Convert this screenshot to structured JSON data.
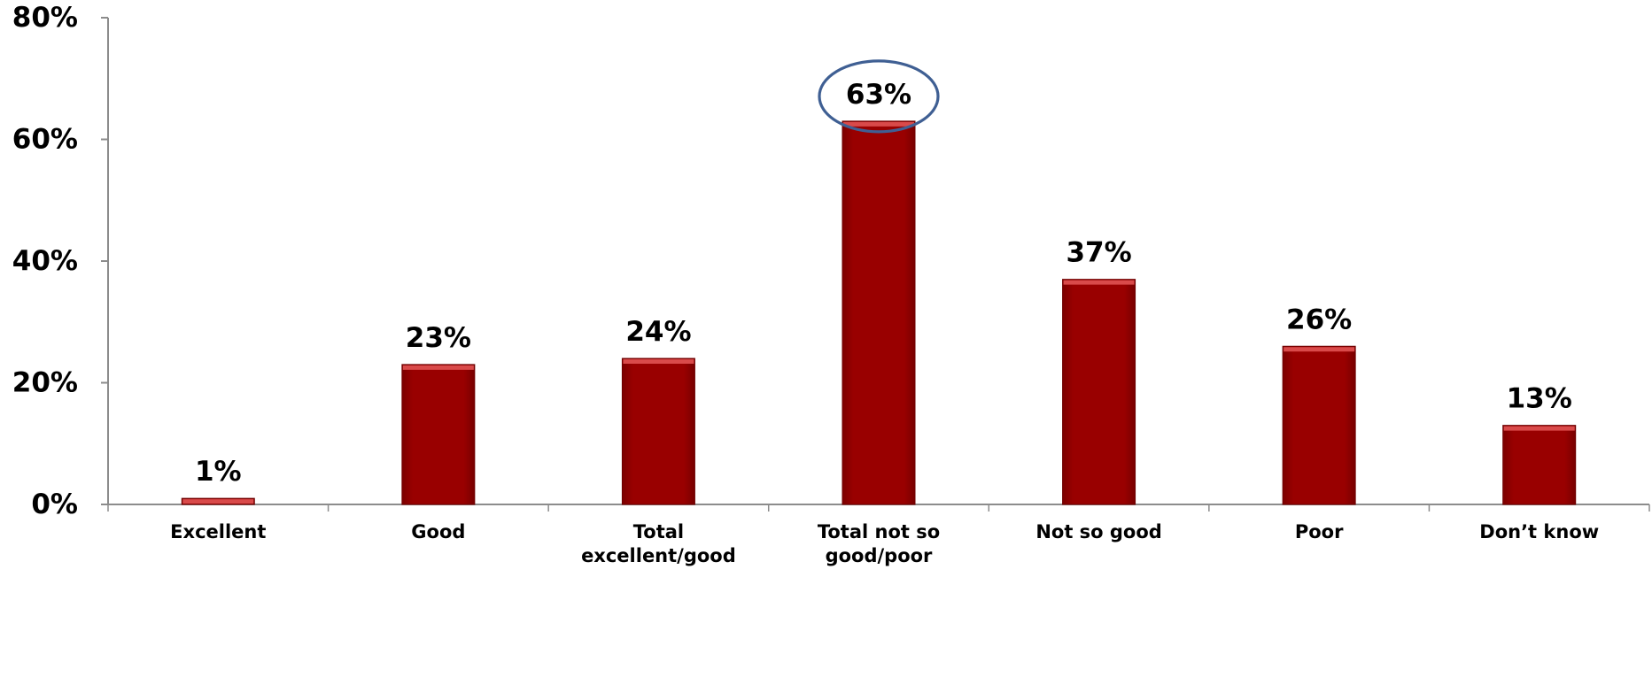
{
  "chart_data": {
    "type": "bar",
    "categories": [
      "Excellent",
      "Good",
      "Total excellent/good",
      "Total not so good/poor",
      "Not so good",
      "Poor",
      "Don’t know"
    ],
    "category_lines": [
      [
        "Excellent"
      ],
      [
        "Good"
      ],
      [
        "Total",
        "excellent/good"
      ],
      [
        "Total not so",
        "good/poor"
      ],
      [
        "Not so good"
      ],
      [
        "Poor"
      ],
      [
        "Don’t know"
      ]
    ],
    "values": [
      1,
      23,
      24,
      63,
      37,
      26,
      13
    ],
    "data_labels": [
      "1%",
      "23%",
      "24%",
      "63%",
      "37%",
      "26%",
      "13%"
    ],
    "y_ticks": [
      0,
      20,
      40,
      60,
      80
    ],
    "y_tick_labels": [
      "0%",
      "20%",
      "40%",
      "60%",
      "80%"
    ],
    "ylim": [
      0,
      80
    ],
    "highlighted_category": "Total not so good/poor",
    "colors": {
      "bar": "#990000",
      "bar_top": "#D94A4A",
      "axis": "#8C8C8C",
      "text": "#000000",
      "highlight": "#3F5F93"
    }
  }
}
